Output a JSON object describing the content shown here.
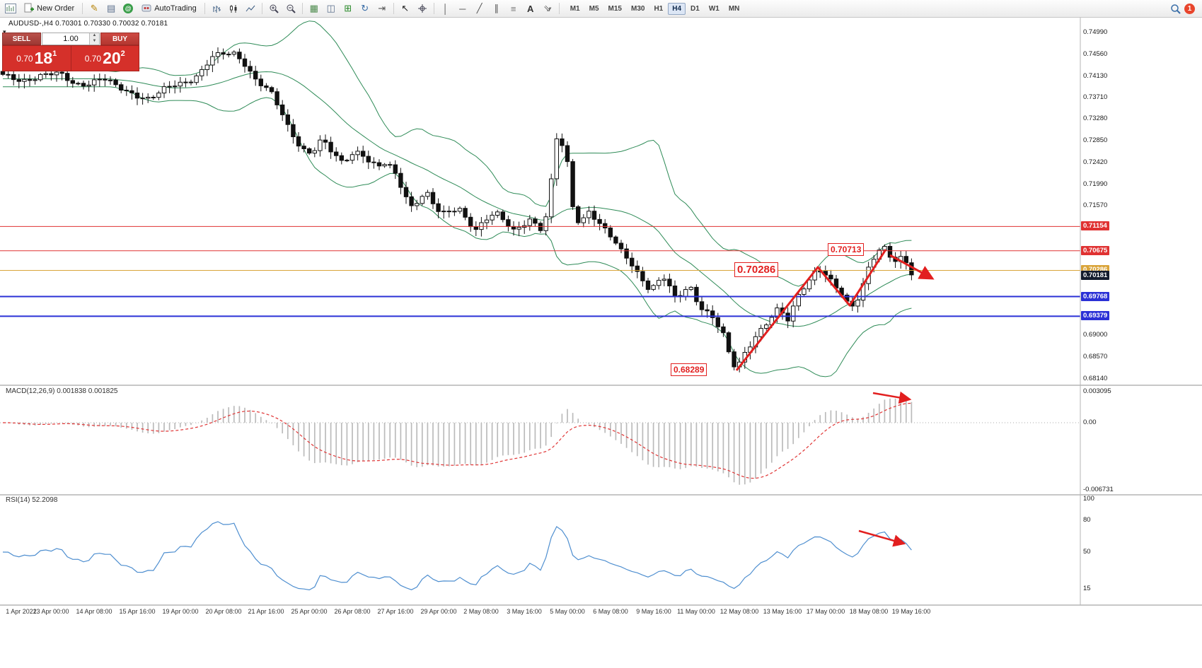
{
  "toolbar": {
    "new_order": "New Order",
    "autotrading": "AutoTrading",
    "timeframes": [
      "M1",
      "M5",
      "M15",
      "M30",
      "H1",
      "H4",
      "D1",
      "W1",
      "MN"
    ],
    "active_timeframe": "H4",
    "notification_count": "1",
    "icon_names": [
      "chart-window",
      "new-order",
      "metaeditor",
      "market-watch",
      "community",
      "autotrading",
      "bar-chart",
      "candlestick-chart",
      "line-chart",
      "zoom-in",
      "zoom-out",
      "tile-windows",
      "data-window",
      "new-chart",
      "refresh",
      "chart-shift",
      "cursor",
      "crosshair",
      "vertical-line",
      "horizontal-line",
      "trendline",
      "equidistant-channel",
      "fibonacci",
      "text",
      "arrows",
      "search",
      "notifications"
    ]
  },
  "chart": {
    "ohlc_line": "AUDUSD-,H4  0.70301 0.70330 0.70032 0.70181",
    "trade_panel": {
      "sell_label": "SELL",
      "buy_label": "BUY",
      "volume": "1.00",
      "sell_big": "0.70",
      "sell_pips": "18",
      "sell_sup": "1",
      "buy_big": "0.70",
      "buy_pips": "20",
      "buy_sup": "2"
    },
    "annotations": {
      "peak": "0.70713",
      "mid": "0.70286",
      "low": "0.68289"
    },
    "price_axis": {
      "plain": [
        "0.74990",
        "0.74560",
        "0.74130",
        "0.73710",
        "0.73280",
        "0.72850",
        "0.72420",
        "0.71990",
        "0.71570",
        "0.69000",
        "0.68570",
        "0.68140"
      ],
      "boxed": [
        {
          "label": "0.71154",
          "color": "#e03232"
        },
        {
          "label": "0.70675",
          "color": "#e03232"
        },
        {
          "label": "0.70286",
          "color": "#d9a43a"
        },
        {
          "label": "0.70181",
          "color": "#141c2e"
        },
        {
          "label": "0.69768",
          "color": "#2b31d6"
        },
        {
          "label": "0.69379",
          "color": "#2b31d6"
        }
      ]
    }
  },
  "macd": {
    "title": "MACD(12,26,9) 0.001838 0.001825",
    "axis": [
      "0.003095",
      "0.00",
      "-0.006731"
    ]
  },
  "rsi": {
    "title": "RSI(14) 52.2098",
    "axis": [
      "100",
      "80",
      "50",
      "15"
    ]
  },
  "time_axis": [
    "1 Apr 2022",
    "13 Apr 00:00",
    "14 Apr 08:00",
    "15 Apr 16:00",
    "19 Apr 00:00",
    "20 Apr 08:00",
    "21 Apr 16:00",
    "25 Apr 00:00",
    "26 Apr 08:00",
    "27 Apr 16:00",
    "29 Apr 00:00",
    "2 May 08:00",
    "3 May 16:00",
    "5 May 00:00",
    "6 May 08:00",
    "9 May 16:00",
    "11 May 00:00",
    "12 May 08:00",
    "13 May 16:00",
    "17 May 00:00",
    "18 May 08:00",
    "19 May 16:00"
  ],
  "colors": {
    "annotation_red": "#e21f1f",
    "bollinger_green": "#2e8b57",
    "candle_outline": "#111111",
    "rsi_blue": "#4f8fd0",
    "macd_signal": "#e03535",
    "macd_histogram": "#bbbbbb"
  },
  "chart_data": {
    "type": "candlestick",
    "symbol": "AUDUSD",
    "timeframe": "H4",
    "ohlc_current": {
      "open": 0.70301,
      "high": 0.7033,
      "low": 0.70032,
      "close": 0.70181
    },
    "price_range": [
      0.6814,
      0.7499
    ],
    "indicators": {
      "bollinger": {
        "period": 20,
        "deviation": 2
      },
      "macd": {
        "fast": 12,
        "slow": 26,
        "signal": 9,
        "values": [
          0.001838,
          0.001825
        ]
      },
      "rsi": {
        "period": 14,
        "value": 52.2098
      }
    },
    "horizontal_lines": [
      {
        "price": 0.71154,
        "color": "#e03232",
        "width": 1
      },
      {
        "price": 0.70675,
        "color": "#e03232",
        "width": 1
      },
      {
        "price": 0.70286,
        "color": "#d9a43a",
        "width": 1
      },
      {
        "price": 0.69768,
        "color": "#2b31d6",
        "width": 2
      },
      {
        "price": 0.69379,
        "color": "#2b31d6",
        "width": 2
      }
    ],
    "annotation_prices": [
      0.70713,
      0.70286,
      0.68289
    ],
    "close_anchors": [
      [
        4,
        0.7412
      ],
      [
        30,
        0.7406
      ],
      [
        60,
        0.7414
      ],
      [
        85,
        0.7415
      ],
      [
        105,
        0.7399
      ],
      [
        125,
        0.74
      ],
      [
        145,
        0.7407
      ],
      [
        165,
        0.739
      ],
      [
        190,
        0.7379
      ],
      [
        212,
        0.7368
      ],
      [
        232,
        0.7384
      ],
      [
        250,
        0.7396
      ],
      [
        268,
        0.7406
      ],
      [
        283,
        0.7422
      ],
      [
        300,
        0.7449
      ],
      [
        320,
        0.7455
      ],
      [
        333,
        0.7457
      ],
      [
        347,
        0.7438
      ],
      [
        362,
        0.7407
      ],
      [
        383,
        0.7378
      ],
      [
        407,
        0.7312
      ],
      [
        425,
        0.7274
      ],
      [
        440,
        0.7262
      ],
      [
        455,
        0.7287
      ],
      [
        470,
        0.7257
      ],
      [
        484,
        0.724
      ],
      [
        497,
        0.7261
      ],
      [
        509,
        0.7267
      ],
      [
        521,
        0.7247
      ],
      [
        534,
        0.7231
      ],
      [
        547,
        0.7239
      ],
      [
        559,
        0.7216
      ],
      [
        571,
        0.7184
      ],
      [
        581,
        0.7157
      ],
      [
        592,
        0.7172
      ],
      [
        602,
        0.7186
      ],
      [
        613,
        0.7157
      ],
      [
        623,
        0.7136
      ],
      [
        636,
        0.7143
      ],
      [
        649,
        0.7153
      ],
      [
        661,
        0.7129
      ],
      [
        673,
        0.7112
      ],
      [
        686,
        0.7128
      ],
      [
        701,
        0.7139
      ],
      [
        713,
        0.7124
      ],
      [
        725,
        0.7107
      ],
      [
        738,
        0.7122
      ],
      [
        751,
        0.7134
      ],
      [
        763,
        0.7107
      ],
      [
        776,
        0.7143
      ],
      [
        784,
        0.7291
      ],
      [
        793,
        0.7279
      ],
      [
        801,
        0.7252
      ],
      [
        809,
        0.7161
      ],
      [
        819,
        0.7123
      ],
      [
        833,
        0.7149
      ],
      [
        846,
        0.7119
      ],
      [
        859,
        0.7101
      ],
      [
        873,
        0.7074
      ],
      [
        886,
        0.7057
      ],
      [
        900,
        0.7029
      ],
      [
        911,
        0.7007
      ],
      [
        919,
        0.6987
      ],
      [
        929,
        0.7002
      ],
      [
        938,
        0.7012
      ],
      [
        947,
        0.6991
      ],
      [
        956,
        0.6971
      ],
      [
        966,
        0.699
      ],
      [
        975,
        0.7002
      ],
      [
        985,
        0.6971
      ],
      [
        994,
        0.6949
      ],
      [
        1004,
        0.694
      ],
      [
        1014,
        0.6917
      ],
      [
        1023,
        0.6897
      ],
      [
        1033,
        0.6851
      ],
      [
        1041,
        0.6835
      ],
      [
        1049,
        0.6861
      ],
      [
        1057,
        0.6877
      ],
      [
        1066,
        0.6897
      ],
      [
        1076,
        0.6911
      ],
      [
        1086,
        0.6924
      ],
      [
        1094,
        0.6939
      ],
      [
        1101,
        0.6951
      ],
      [
        1109,
        0.6937
      ],
      [
        1113,
        0.6929
      ],
      [
        1121,
        0.6957
      ],
      [
        1129,
        0.6985
      ],
      [
        1137,
        0.7001
      ],
      [
        1146,
        0.7014
      ],
      [
        1156,
        0.7034
      ],
      [
        1163,
        0.7021
      ],
      [
        1171,
        0.7009
      ],
      [
        1179,
        0.6997
      ],
      [
        1187,
        0.6985
      ],
      [
        1195,
        0.6971
      ],
      [
        1201,
        0.6957
      ],
      [
        1208,
        0.6967
      ],
      [
        1214,
        0.6981
      ],
      [
        1221,
        0.7007
      ],
      [
        1227,
        0.7034
      ],
      [
        1233,
        0.7049
      ],
      [
        1240,
        0.7061
      ],
      [
        1246,
        0.7067
      ],
      [
        1252,
        0.707
      ],
      [
        1258,
        0.7054
      ],
      [
        1263,
        0.7041
      ],
      [
        1269,
        0.7049
      ],
      [
        1276,
        0.7057
      ],
      [
        1282,
        0.7047
      ],
      [
        1287,
        0.7029
      ],
      [
        1292,
        0.7018
      ]
    ]
  }
}
